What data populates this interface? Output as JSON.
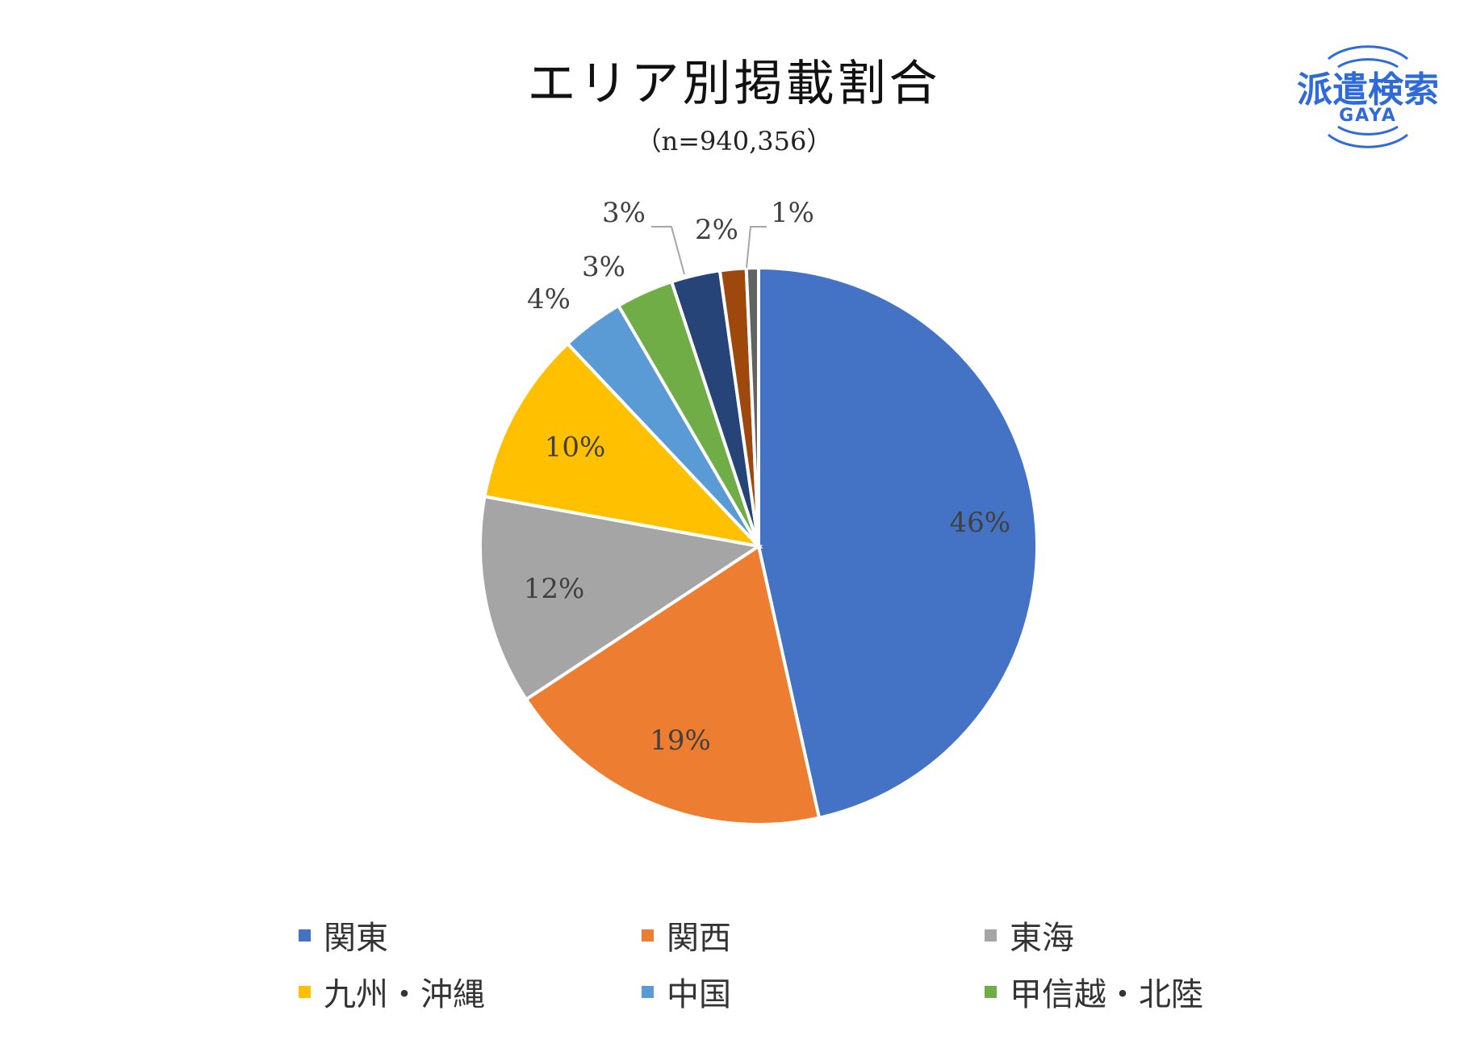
{
  "header": {
    "title": "エリア別掲載割合",
    "subtitle": "（n=940,356）"
  },
  "logo": {
    "main": "派遣検索",
    "sub": "GAYA",
    "color": "#2f6bd8"
  },
  "chart_data": {
    "type": "pie",
    "title": "エリア別掲載割合",
    "subtitle": "（n=940,356）",
    "legend_position": "bottom",
    "slices": [
      {
        "name": "関東",
        "value": 46,
        "label": "46%",
        "color": "#4472c4"
      },
      {
        "name": "関西",
        "value": 19,
        "label": "19%",
        "color": "#ed7d31"
      },
      {
        "name": "東海",
        "value": 12,
        "label": "12%",
        "color": "#a5a5a5"
      },
      {
        "name": "九州・沖縄",
        "value": 10,
        "label": "10%",
        "color": "#ffc000"
      },
      {
        "name": "中国",
        "value": 3.6,
        "label": "4%",
        "color": "#5b9bd5"
      },
      {
        "name": "甲信越・北陸",
        "value": 3.3,
        "label": "3%",
        "color": "#70ad47"
      },
      {
        "name": "",
        "value": 2.8,
        "label": "3%",
        "color": "#264478"
      },
      {
        "name": "",
        "value": 1.5,
        "label": "2%",
        "color": "#9e480e"
      },
      {
        "name": "",
        "value": 0.7,
        "label": "1%",
        "color": "#636363"
      }
    ]
  },
  "legend": {
    "items": [
      {
        "label": "関東",
        "color": "#4472c4"
      },
      {
        "label": "関西",
        "color": "#ed7d31"
      },
      {
        "label": "東海",
        "color": "#a5a5a5"
      },
      {
        "label": "九州・沖縄",
        "color": "#ffc000"
      },
      {
        "label": "中国",
        "color": "#5b9bd5"
      },
      {
        "label": "甲信越・北陸",
        "color": "#70ad47"
      }
    ]
  }
}
